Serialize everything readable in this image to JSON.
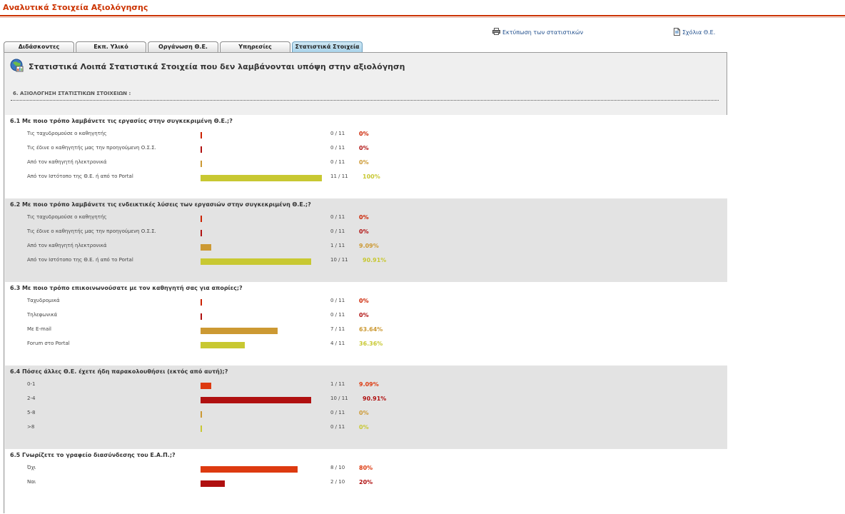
{
  "page": {
    "title": "Αναλυτικά Στοιχεία Αξιολόγησης"
  },
  "toplinks": {
    "print": "Εκτύπωση των στατιστικών",
    "comments": "Σχόλια Θ.Ε."
  },
  "tabs": [
    {
      "label": "Διδάσκοντες",
      "active": false
    },
    {
      "label": "Εκπ. Υλικό",
      "active": false
    },
    {
      "label": "Οργάνωση Θ.Ε.",
      "active": false
    },
    {
      "label": "Υπηρεσίες",
      "active": false
    },
    {
      "label": "Στατιστικά Στοιχεία",
      "active": true
    }
  ],
  "panel": {
    "heading": "Στατιστικά Λοιπά Στατιστικά Στοιχεία που δεν λαμβάνονται υπόψη στην αξιολόγηση",
    "section": "6. ΑΞΙΟΛΟΓΗΣΗ ΣΤΑΤΙΣΤΙΚΩΝ ΣΤΟΙΧΕΙΩΝ :"
  },
  "colors": {
    "accent": "#cc3300",
    "red": "#cc2200",
    "darkred": "#b01010",
    "orange": "#cc9933",
    "olive": "#c8c832",
    "orangered": "#dd3a10"
  },
  "questions": [
    {
      "title": "6.1 Με ποιο τρόπο λαμβάνετε τις εργασίες στην συγκεκριμένη Θ.Ε.;?",
      "answers": [
        {
          "label": "Τις ταχυδρομούσε ο καθηγητής",
          "count": "0 / 11",
          "percent": "0%",
          "value": 0,
          "color": "#cc2200"
        },
        {
          "label": "Τις έδινε ο καθηγητής μας την προηγούμενη Ο.Σ.Σ.",
          "count": "0 / 11",
          "percent": "0%",
          "value": 0,
          "color": "#b01010"
        },
        {
          "label": "Από τον καθηγητή ηλεκτρονικά",
          "count": "0 / 11",
          "percent": "0%",
          "value": 0,
          "color": "#cc9933"
        },
        {
          "label": "Από τον Ιστότοπο της Θ.Ε. ή από το Portal",
          "count": "11 / 11",
          "percent": "100%",
          "value": 100,
          "color": "#c8c832"
        }
      ]
    },
    {
      "title": "6.2 Με ποιο τρόπο λαμβάνετε τις ενδεικτικές λύσεις των εργασιών στην συγκεκριμένη Θ.Ε.;?",
      "answers": [
        {
          "label": "Τις ταχυδρομούσε ο καθηγητής",
          "count": "0 / 11",
          "percent": "0%",
          "value": 0,
          "color": "#cc2200"
        },
        {
          "label": "Τις έδινε ο καθηγητής μας την προηγούμενη Ο.Σ.Σ.",
          "count": "0 / 11",
          "percent": "0%",
          "value": 0,
          "color": "#b01010"
        },
        {
          "label": "Από τον καθηγητή ηλεκτρονικά",
          "count": "1 / 11",
          "percent": "9.09%",
          "value": 9.09,
          "color": "#cc9933"
        },
        {
          "label": "Από τον Ιστότοπο της Θ.Ε. ή από το Portal",
          "count": "10 / 11",
          "percent": "90.91%",
          "value": 90.91,
          "color": "#c8c832"
        }
      ]
    },
    {
      "title": "6.3 Με ποιο τρόπο επικοινωνούσατε με τον καθηγητή σας για απορίες;?",
      "answers": [
        {
          "label": "Ταχυδρομικά",
          "count": "0 / 11",
          "percent": "0%",
          "value": 0,
          "color": "#cc2200"
        },
        {
          "label": "Τηλεφωνικά",
          "count": "0 / 11",
          "percent": "0%",
          "value": 0,
          "color": "#b01010"
        },
        {
          "label": "Με E-mail",
          "count": "7 / 11",
          "percent": "63.64%",
          "value": 63.64,
          "color": "#cc9933"
        },
        {
          "label": "Forum στο Portal",
          "count": "4 / 11",
          "percent": "36.36%",
          "value": 36.36,
          "color": "#c8c832"
        }
      ]
    },
    {
      "title": "6.4 Πόσες άλλες Θ.Ε. έχετε ήδη παρακολουθήσει (εκτός από αυτή);?",
      "answers": [
        {
          "label": "0-1",
          "count": "1 / 11",
          "percent": "9.09%",
          "value": 9.09,
          "color": "#dd3a10"
        },
        {
          "label": "2-4",
          "count": "10 / 11",
          "percent": "90.91%",
          "value": 90.91,
          "color": "#b01010"
        },
        {
          "label": "5-8",
          "count": "0 / 11",
          "percent": "0%",
          "value": 0,
          "color": "#cc9933"
        },
        {
          "label": ">8",
          "count": "0 / 11",
          "percent": "0%",
          "value": 0,
          "color": "#c8c832"
        }
      ]
    },
    {
      "title": "6.5 Γνωρίζετε το γραφείο διασύνδεσης του Ε.Α.Π.;?",
      "answers": [
        {
          "label": "Όχι",
          "count": "8 / 10",
          "percent": "80%",
          "value": 80,
          "color": "#dd3a10"
        },
        {
          "label": "Ναι",
          "count": "2 / 10",
          "percent": "20%",
          "value": 20,
          "color": "#b01010"
        }
      ]
    }
  ]
}
